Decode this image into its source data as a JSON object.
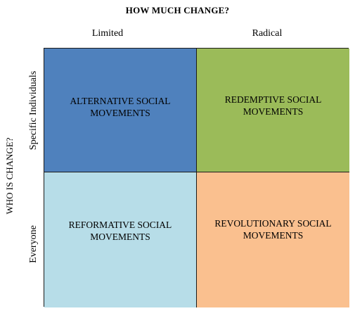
{
  "title": "HOW MUCH CHANGE?",
  "columns": [
    "Limited",
    "Radical"
  ],
  "y_axis_title": "WHO IS CHANGE?",
  "rows": [
    "Specific Individuals",
    "Everyone"
  ],
  "quadrants": [
    {
      "label": "ALTERNATIVE SOCIAL MOVEMENTS",
      "color": "#4f81bd"
    },
    {
      "label": "REDEMPTIVE SOCIAL MOVEMENTS",
      "color": "#9bbb59"
    },
    {
      "label": "REFORMATIVE SOCIAL MOVEMENTS",
      "color": "#b7dde8"
    },
    {
      "label": "REVOLUTIONARY SOCIAL MOVEMENTS",
      "color": "#fac08f"
    }
  ]
}
